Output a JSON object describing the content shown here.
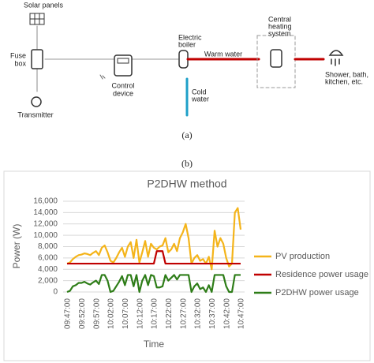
{
  "diagram": {
    "solar_panels": "Solar panels",
    "fuse_box": [
      "Fuse",
      "box"
    ],
    "transmitter": "Transmitter",
    "control_device": [
      "Control",
      "device"
    ],
    "electric_boiler": [
      "Electric",
      "boiler"
    ],
    "warm_water": "Warm water",
    "cold_water": [
      "Cold",
      "water"
    ],
    "central_heating": [
      "Central",
      "heating",
      "system"
    ],
    "outlets": [
      "Shower, bath,",
      "kitchen, etc."
    ],
    "caption": "(a)"
  },
  "chart_caption": "(b)",
  "chart_data": {
    "type": "line",
    "title": "P2DHW method",
    "y_label": "Power (W)",
    "x_label": "Time",
    "categories": [
      "09:47:00",
      null,
      null,
      null,
      null,
      "09:52:00",
      null,
      null,
      null,
      null,
      "09:57:00",
      null,
      null,
      null,
      null,
      "10:02:00",
      null,
      null,
      null,
      null,
      "10:07:00",
      null,
      null,
      null,
      null,
      "10:12:00",
      null,
      null,
      null,
      null,
      "10:17:00",
      null,
      null,
      null,
      null,
      "10:22:00",
      null,
      null,
      null,
      null,
      "10:27:00",
      null,
      null,
      null,
      null,
      "10:32:00",
      null,
      null,
      null,
      null,
      "10:37:00",
      null,
      null,
      null,
      null,
      "10:42:00",
      null,
      null,
      null,
      null,
      "10:47:00"
    ],
    "series": [
      {
        "name": "PV production",
        "color": "#f4b41a",
        "values": [
          5000,
          5200,
          5800,
          6200,
          6500,
          6600,
          6800,
          6700,
          6500,
          6900,
          7200,
          6500,
          7800,
          8200,
          7000,
          5500,
          5200,
          6000,
          7000,
          7800,
          6200,
          8000,
          8800,
          6000,
          9200,
          5200,
          7000,
          9000,
          6200,
          8500,
          7800,
          7500,
          8000,
          8200,
          9500,
          7000,
          7500,
          8500,
          7200,
          9500,
          10500,
          12000,
          9500,
          5000,
          6000,
          6500,
          5500,
          5800,
          5000,
          6200,
          4000,
          10800,
          8000,
          9500,
          8500,
          6000,
          4500,
          5000,
          14000,
          14800,
          11000
        ]
      },
      {
        "name": "Residence power usage",
        "color": "#c00000",
        "values": [
          5000,
          5000,
          5000,
          5000,
          5000,
          5000,
          5000,
          5000,
          5000,
          5000,
          5000,
          5000,
          5000,
          5000,
          5000,
          5000,
          5000,
          5000,
          5000,
          5000,
          5000,
          5000,
          5000,
          5000,
          5000,
          5000,
          5000,
          5000,
          5000,
          5000,
          5000,
          7200,
          7200,
          7200,
          5000,
          5000,
          5000,
          5000,
          5000,
          5000,
          5000,
          5000,
          5000,
          5000,
          5000,
          5000,
          5000,
          5000,
          5000,
          5000,
          5000,
          5000,
          5000,
          5000,
          5000,
          5000,
          5000,
          5000,
          5000,
          5000,
          5000
        ]
      },
      {
        "name": "P2DHW power usage",
        "color": "#2e7d18",
        "values": [
          0,
          200,
          1000,
          1200,
          1600,
          1600,
          1800,
          1500,
          1300,
          1700,
          2000,
          1400,
          3000,
          3000,
          2000,
          0,
          200,
          1000,
          1800,
          2800,
          1200,
          3000,
          3000,
          1000,
          3000,
          0,
          2000,
          3000,
          1200,
          3000,
          2800,
          800,
          800,
          1000,
          3000,
          2000,
          2500,
          3000,
          2200,
          3000,
          3000,
          3000,
          3000,
          0,
          1000,
          1500,
          500,
          800,
          0,
          1200,
          0,
          3000,
          3000,
          3000,
          3000,
          1000,
          0,
          0,
          3000,
          3000,
          3000
        ]
      }
    ],
    "ylim": [
      0,
      16000
    ],
    "yticks": [
      0,
      {
        "value": 2000,
        "label": "2,000"
      },
      {
        "value": 4000,
        "label": "4,000"
      },
      {
        "value": 6000,
        "label": "6,000"
      },
      {
        "value": 8000,
        "label": "8,000"
      },
      {
        "value": 10000,
        "label": "10,000"
      },
      {
        "value": 12000,
        "label": "12,000"
      },
      {
        "value": 14000,
        "label": "14,000"
      },
      {
        "value": 16000,
        "label": "16,000"
      }
    ],
    "grid": true,
    "legend": "right"
  }
}
